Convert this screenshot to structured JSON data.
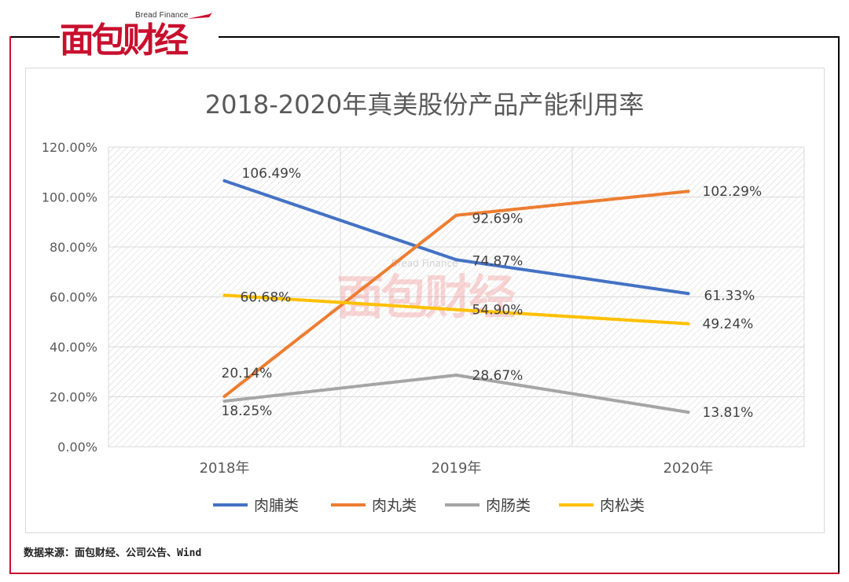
{
  "logo": {
    "text_cn": "面包财经",
    "text_en": "Bread Finance"
  },
  "source": "数据来源：面包财经、公司公告、Wind",
  "watermark": {
    "text_cn": "面包财经",
    "text_en": "Bread Finance"
  },
  "colors": {
    "brand_red": "#c8102e",
    "series": [
      "#4472c4",
      "#ed7d31",
      "#a5a5a5",
      "#ffc000"
    ]
  },
  "chart_data": {
    "type": "line",
    "title": "2018-2020年真美股份产品产能利用率",
    "categories": [
      "2018年",
      "2019年",
      "2020年"
    ],
    "ylim": [
      0,
      120
    ],
    "yticks": [
      0,
      20,
      40,
      60,
      80,
      100,
      120
    ],
    "ytick_labels": [
      "0.00%",
      "20.00%",
      "40.00%",
      "60.00%",
      "80.00%",
      "100.00%",
      "120.00%"
    ],
    "xlabel": "",
    "ylabel": "",
    "grid": true,
    "legend_position": "bottom",
    "series": [
      {
        "name": "肉脯类",
        "values": [
          106.49,
          74.87,
          61.33
        ],
        "labels": [
          "106.49%",
          "74.87%",
          "61.33%"
        ]
      },
      {
        "name": "肉丸类",
        "values": [
          20.14,
          92.69,
          102.29
        ],
        "labels": [
          "20.14%",
          "92.69%",
          "102.29%"
        ]
      },
      {
        "name": "肉肠类",
        "values": [
          18.25,
          28.67,
          13.81
        ],
        "labels": [
          "18.25%",
          "28.67%",
          "13.81%"
        ]
      },
      {
        "name": "肉松类",
        "values": [
          60.68,
          54.9,
          49.24
        ],
        "labels": [
          "60.68%",
          "54.90%",
          "49.24%"
        ]
      }
    ]
  }
}
